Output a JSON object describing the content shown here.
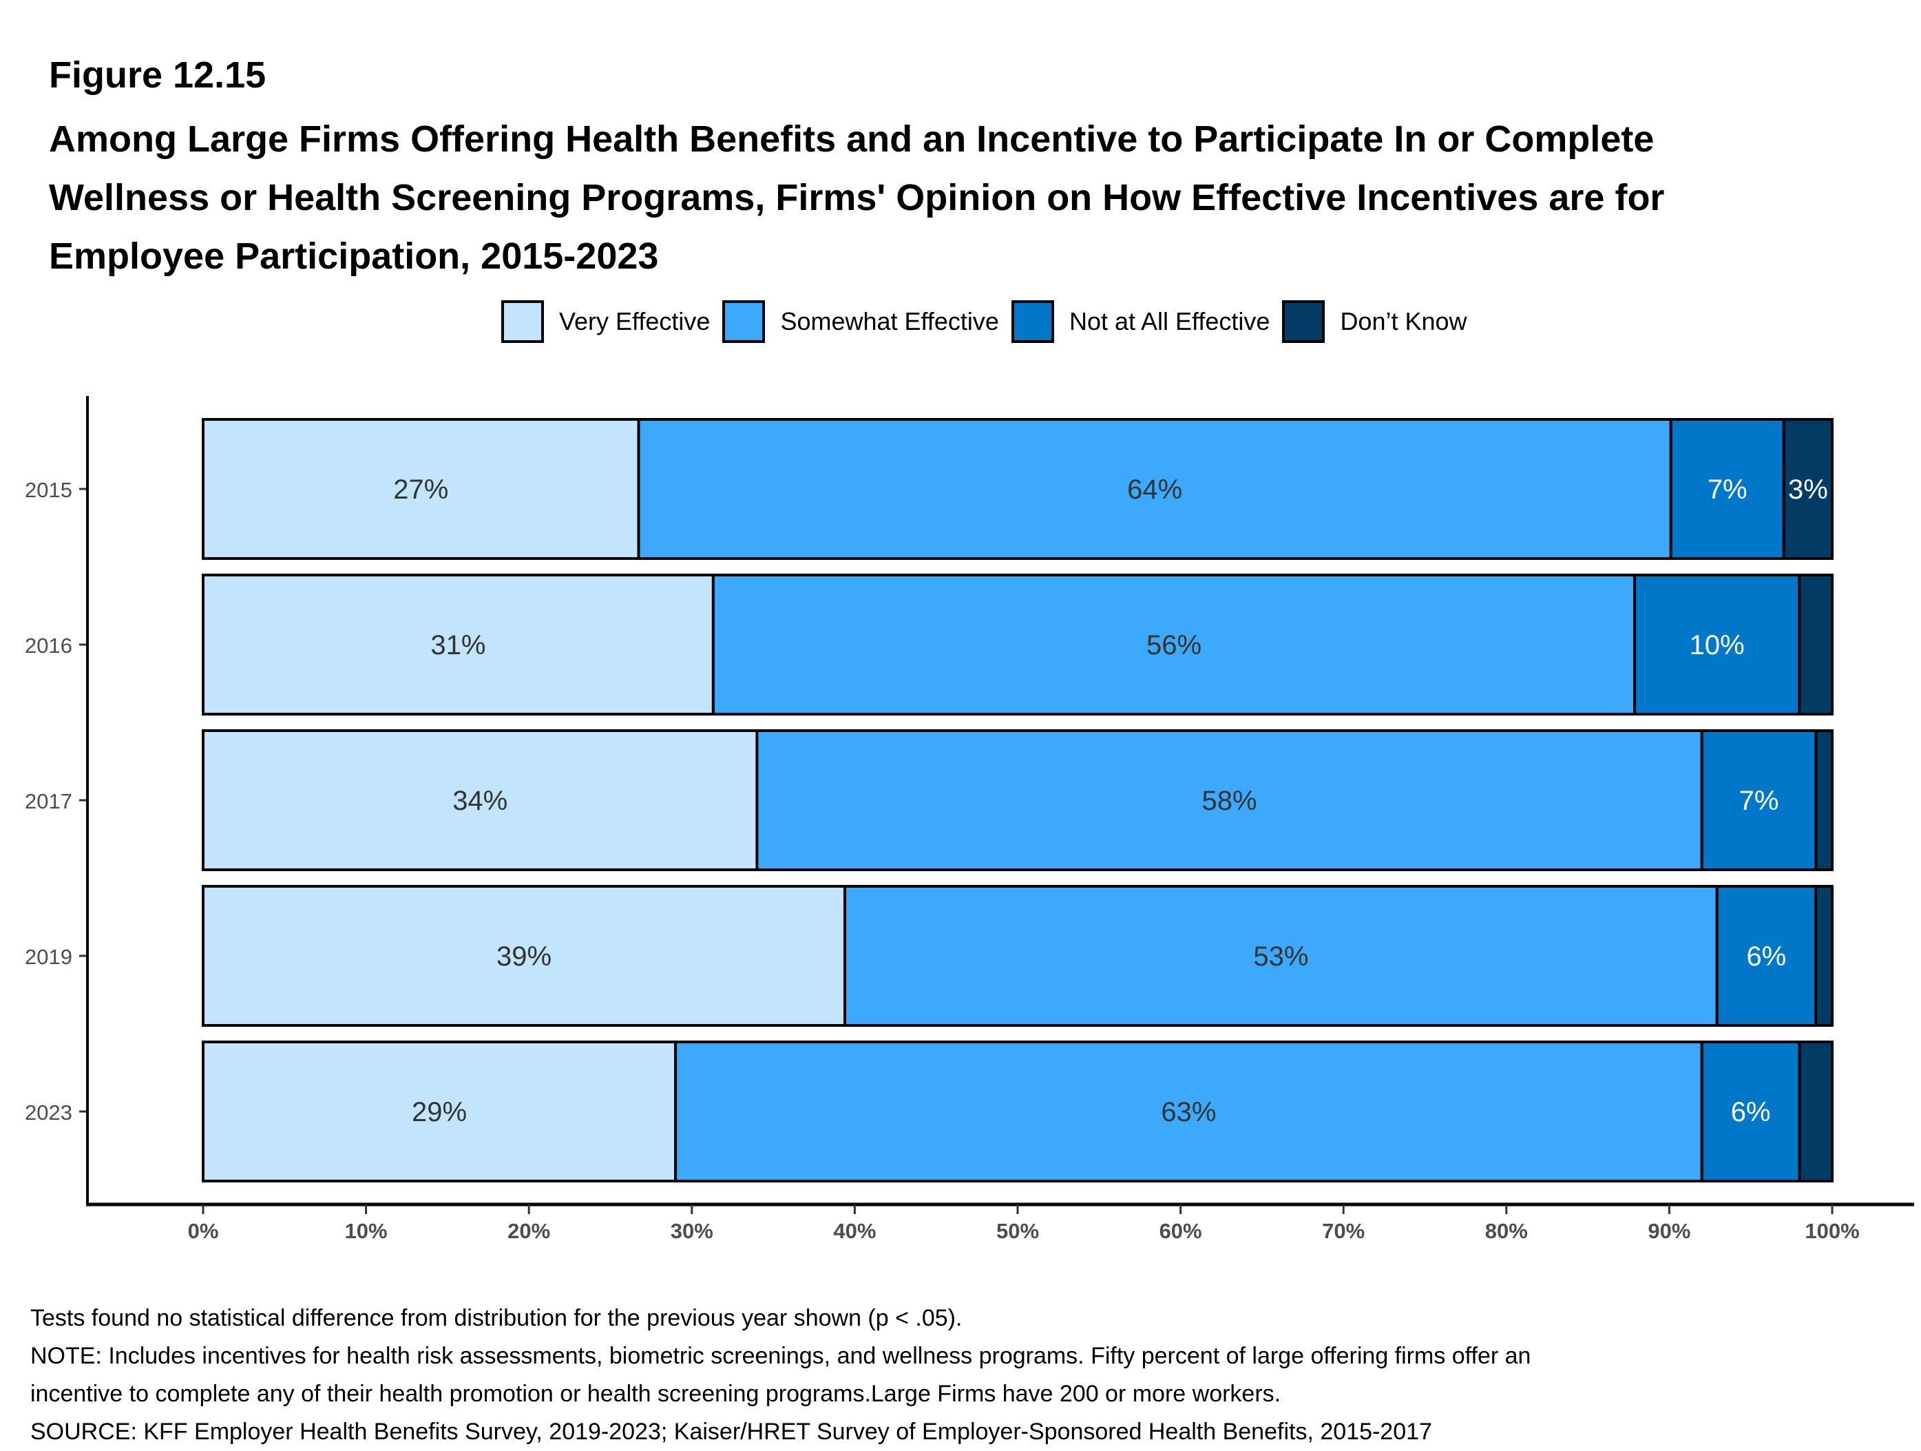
{
  "figure_label": "Figure 12.15",
  "title_lines": [
    "Among Large Firms Offering Health Benefits and an Incentive to Participate In or Complete",
    "Wellness or Health Screening Programs, Firms' Opinion on How Effective Incentives are for",
    "Employee Participation, 2015-2023"
  ],
  "footer": {
    "lines": [
      "Tests found no statistical difference from distribution for the previous year shown (p < .05).",
      "NOTE: Includes incentives for health risk assessments, biometric screenings, and wellness programs. Fifty percent of large offering firms offer an",
      "incentive to complete any of their health promotion or health screening programs.Large Firms have 200 or more workers.",
      "SOURCE: KFF Employer Health Benefits Survey, 2019-2023; Kaiser/HRET Survey of Employer-Sponsored Health Benefits, 2015-2017"
    ]
  },
  "chart_data": {
    "type": "bar",
    "orientation": "horizontal",
    "stacked": true,
    "title": "Among Large Firms Offering Health Benefits and an Incentive to Participate In or Complete Wellness or Health Screening Programs, Firms' Opinion on How Effective Incentives are for Employee Participation, 2015-2023",
    "xlabel": "",
    "ylabel": "",
    "xlim": [
      0,
      100
    ],
    "x_ticks": [
      "0%",
      "10%",
      "20%",
      "30%",
      "40%",
      "50%",
      "60%",
      "70%",
      "80%",
      "90%",
      "100%"
    ],
    "categories": [
      "2015",
      "2016",
      "2017",
      "2019",
      "2023"
    ],
    "legend_position": "top",
    "grid": false,
    "series": [
      {
        "name": "Very Effective",
        "color": "#C2E5FD",
        "label_color": "#333333",
        "values": [
          27,
          31,
          34,
          39,
          29
        ],
        "labels": [
          "27%",
          "31%",
          "34%",
          "39%",
          "29%"
        ]
      },
      {
        "name": "Somewhat Effective",
        "color": "#3CA9FC",
        "label_color": "#333333",
        "values": [
          64,
          56,
          58,
          53,
          63
        ],
        "labels": [
          "64%",
          "56%",
          "58%",
          "53%",
          "63%"
        ]
      },
      {
        "name": "Not at All Effective",
        "color": "#0077C8",
        "label_color": "#ffffff",
        "values": [
          7,
          10,
          7,
          6,
          6
        ],
        "labels": [
          "7%",
          "10%",
          "7%",
          "6%",
          "6%"
        ]
      },
      {
        "name": "Don’t Know",
        "color": "#023C64",
        "label_color": "#ffffff",
        "values": [
          3,
          2,
          1,
          1,
          2
        ],
        "labels": [
          "3%",
          "",
          "",
          "",
          ""
        ]
      }
    ]
  }
}
